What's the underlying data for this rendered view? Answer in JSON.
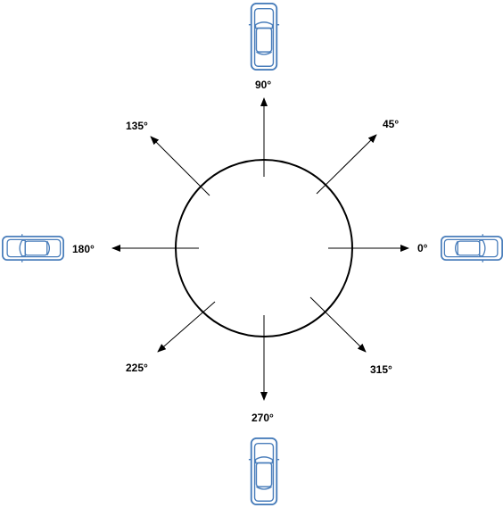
{
  "colors": {
    "line": "#000000",
    "car_body": "#ffffff",
    "car_outline": "#4a7ebb"
  },
  "directions": [
    {
      "id": "0",
      "label": "0°",
      "car": true
    },
    {
      "id": "45",
      "label": "45°",
      "car": false
    },
    {
      "id": "90",
      "label": "90°",
      "car": true
    },
    {
      "id": "135",
      "label": "135°",
      "car": false
    },
    {
      "id": "180",
      "label": "180°",
      "car": true
    },
    {
      "id": "225",
      "label": "225°",
      "car": false
    },
    {
      "id": "270",
      "label": "270°",
      "car": true
    },
    {
      "id": "315",
      "label": "315°",
      "car": false
    }
  ]
}
